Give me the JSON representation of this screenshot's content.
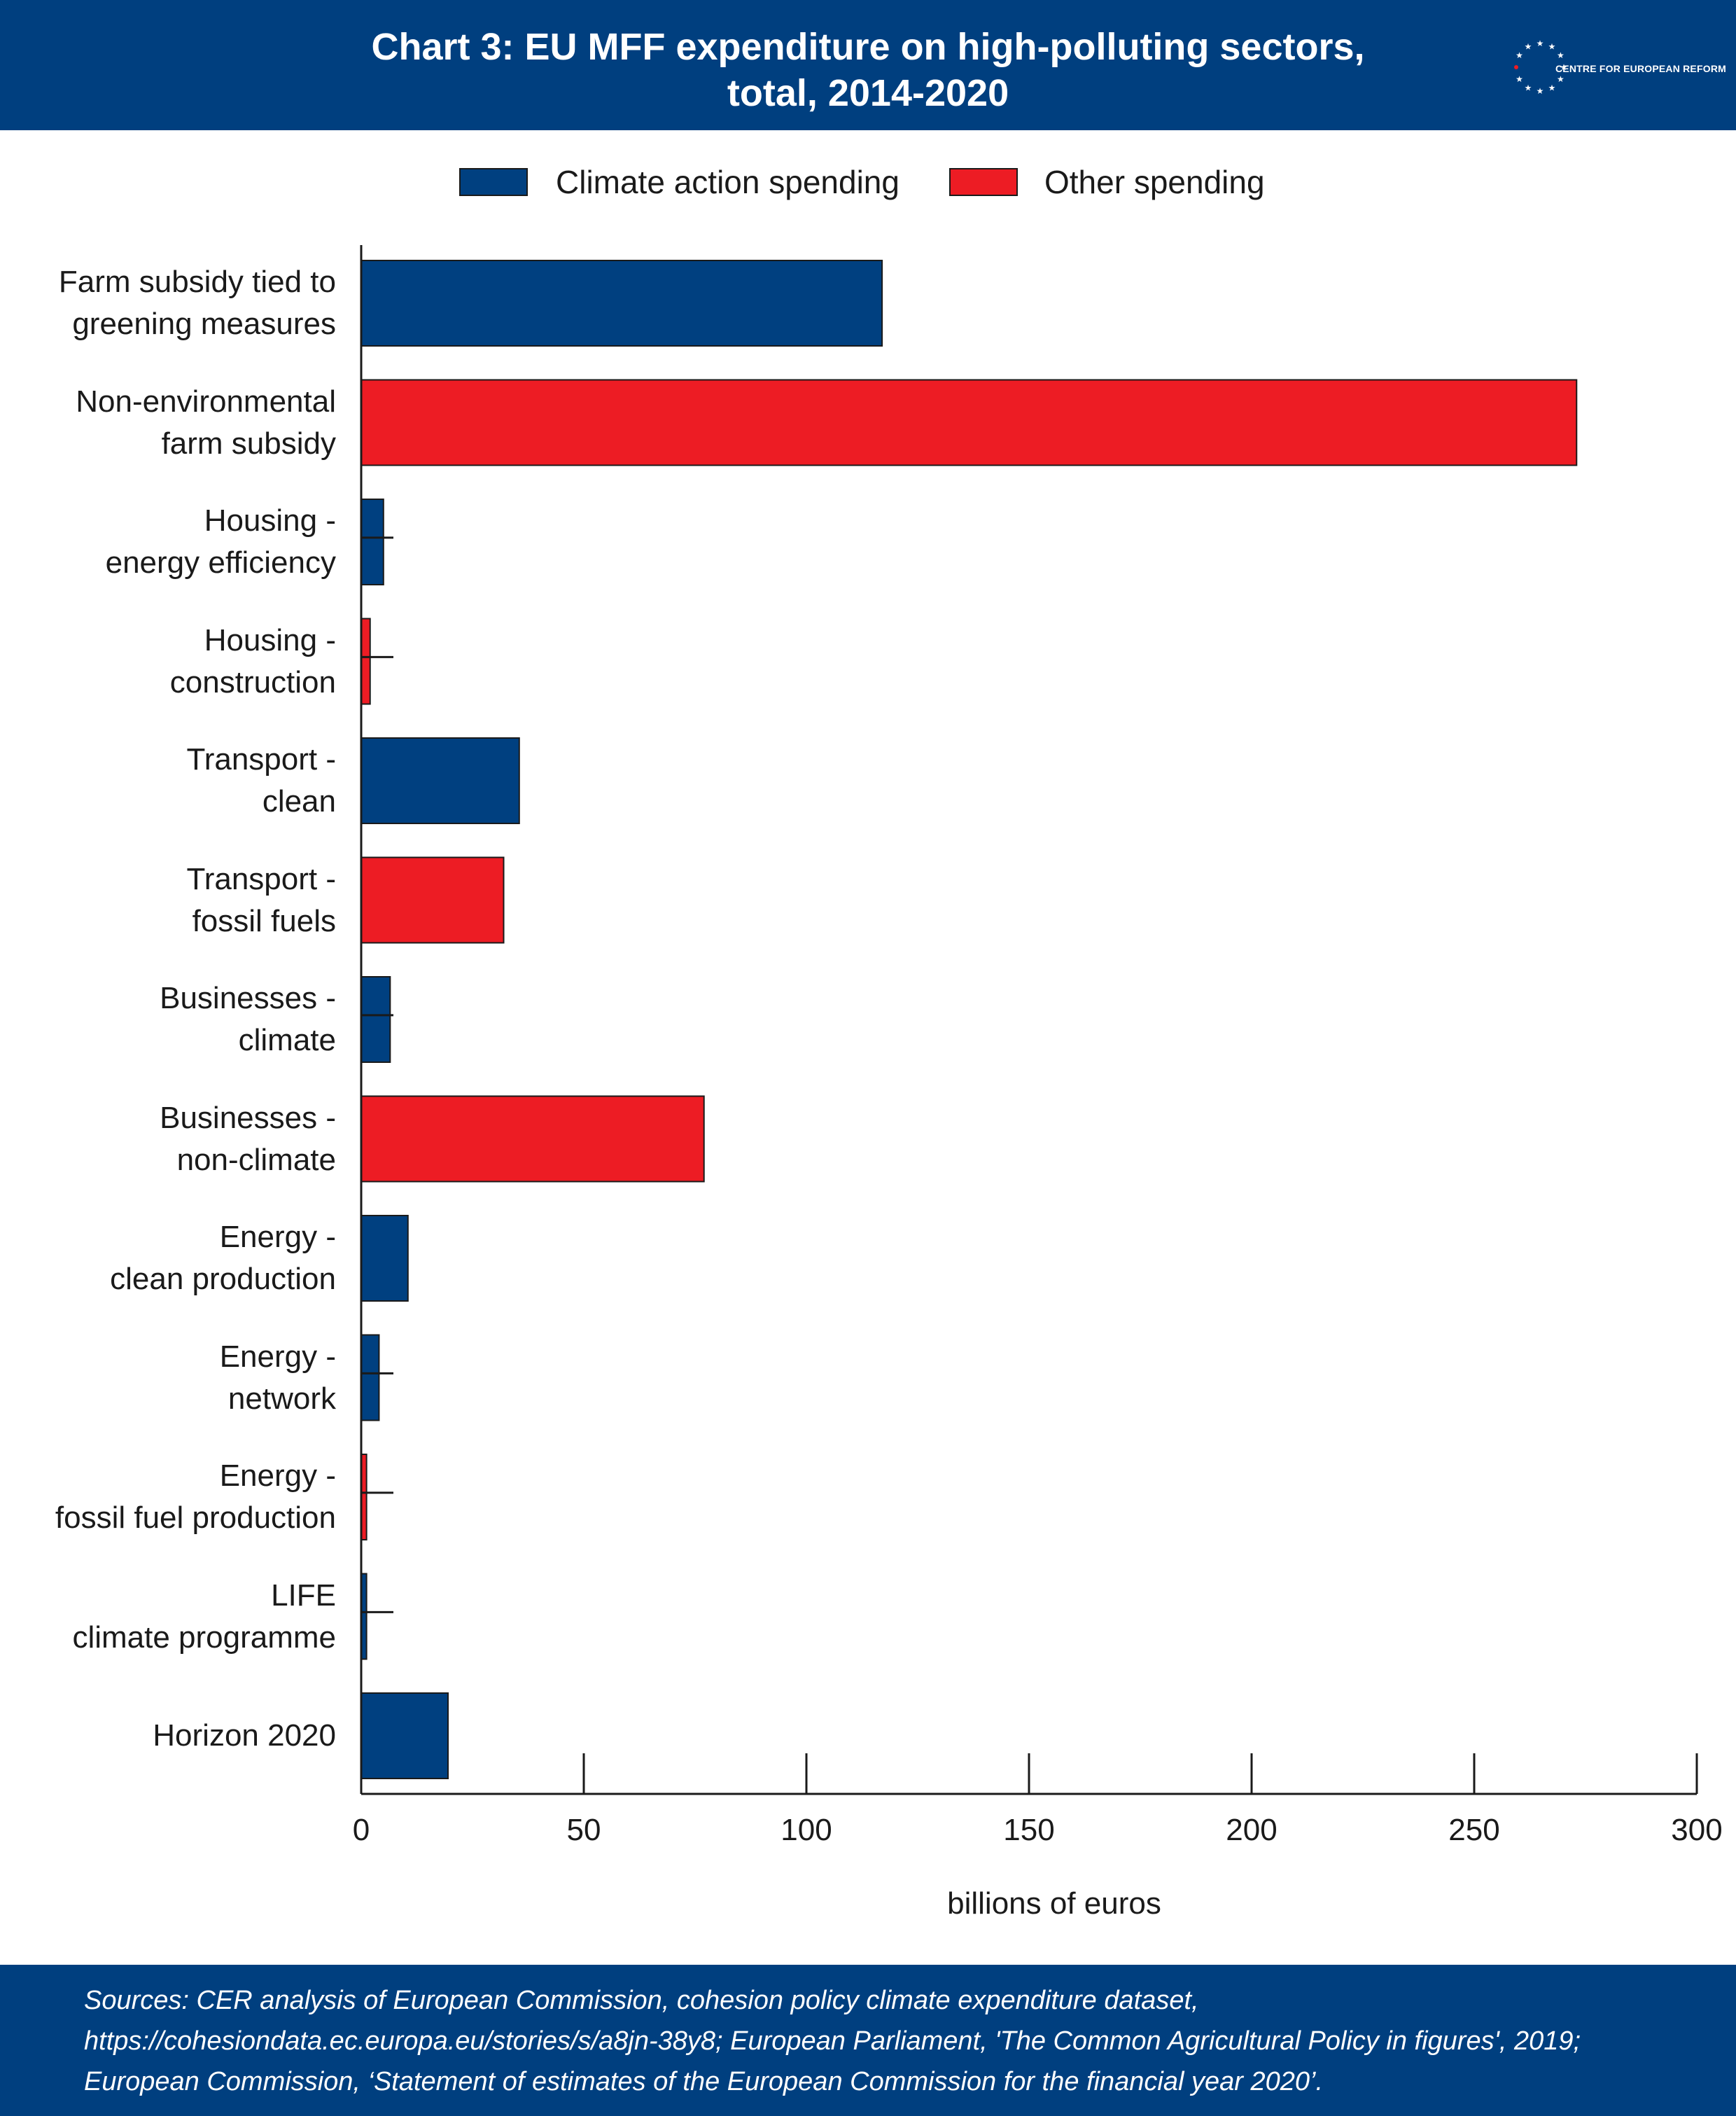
{
  "header": {
    "title_line1": "Chart 3: EU MFF expenditure on high-polluting sectors,",
    "title_line2": "total, 2014-2020",
    "logo_text": "CENTRE FOR EUROPEAN REFORM"
  },
  "colors": {
    "header_bg": "#003f7f",
    "climate": "#004080",
    "other": "#ed1c24"
  },
  "chart_data": {
    "type": "bar",
    "orientation": "horizontal",
    "title": "Chart 3: EU MFF expenditure on high-polluting sectors, total, 2014-2020",
    "xlabel": "billions of euros",
    "ylabel": "",
    "xlim": [
      0,
      300
    ],
    "xticks": [
      "0",
      "50",
      "100",
      "150",
      "200",
      "250",
      "300"
    ],
    "legend_position": "top",
    "series": [
      {
        "name": "Climate action spending",
        "color": "#004080"
      },
      {
        "name": "Other spending",
        "color": "#ed1c24"
      }
    ],
    "bars": [
      {
        "category": [
          "Farm subsidy tied to",
          "greening measures"
        ],
        "value": 117,
        "series": "Climate action spending"
      },
      {
        "category": [
          "Non-environmental",
          "farm subsidy"
        ],
        "value": 273,
        "series": "Other spending"
      },
      {
        "category": [
          "Housing -",
          "energy efficiency"
        ],
        "value": 5,
        "series": "Climate action spending",
        "error_bar": true
      },
      {
        "category": [
          "Housing -",
          "construction"
        ],
        "value": 2,
        "series": "Other spending",
        "error_bar": true
      },
      {
        "category": [
          "Transport -",
          "clean"
        ],
        "value": 35.5,
        "series": "Climate action spending"
      },
      {
        "category": [
          "Transport -",
          "fossil fuels"
        ],
        "value": 32,
        "series": "Other spending"
      },
      {
        "category": [
          "Businesses -",
          "climate"
        ],
        "value": 6.5,
        "series": "Climate action spending",
        "error_bar": true
      },
      {
        "category": [
          "Businesses -",
          "non-climate"
        ],
        "value": 77,
        "series": "Other spending"
      },
      {
        "category": [
          "Energy -",
          "clean production"
        ],
        "value": 10.5,
        "series": "Climate action spending"
      },
      {
        "category": [
          "Energy -",
          "network"
        ],
        "value": 4,
        "series": "Climate action spending",
        "error_bar": true
      },
      {
        "category": [
          "Energy -",
          "fossil fuel production"
        ],
        "value": 1.2,
        "series": "Other spending",
        "error_bar": true
      },
      {
        "category": [
          "LIFE",
          "climate programme"
        ],
        "value": 1.2,
        "series": "Climate action spending",
        "error_bar": true
      },
      {
        "category": [
          "Horizon 2020"
        ],
        "value": 19.5,
        "series": "Climate action spending"
      }
    ]
  },
  "footer": {
    "sources": [
      "Sources: CER analysis of European Commission, cohesion policy climate expenditure dataset,",
      "https://cohesiondata.ec.europa.eu/stories/s/a8jn-38y8; European Parliament, 'The Common Agricultural Policy in figures', 2019;",
      "European Commission, ‘Statement of estimates of the European Commission for the financial year 2020’."
    ]
  }
}
